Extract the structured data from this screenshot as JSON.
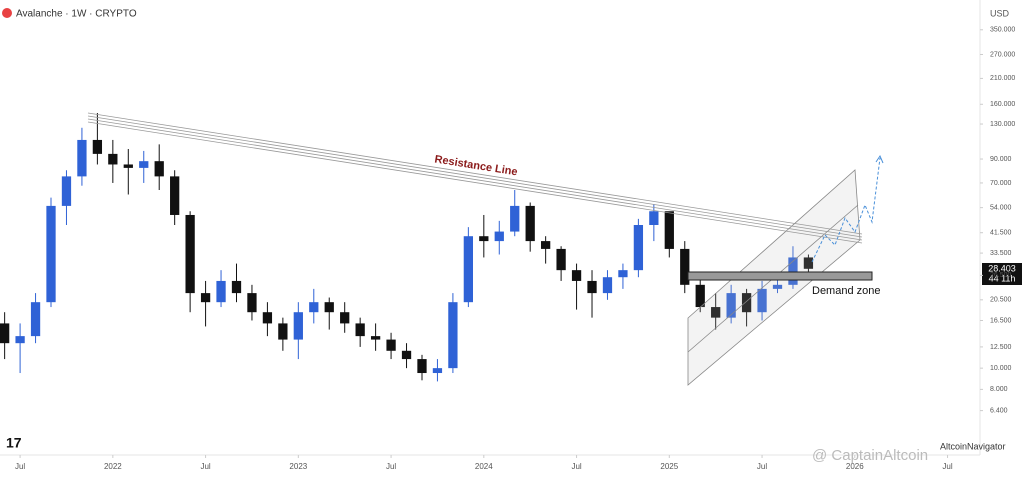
{
  "chart_data": {
    "type": "candlestick",
    "title": "Avalanche · 1W · CRYPTO",
    "currency": "USD",
    "annotations": [
      "Resistance Line",
      "Demand zone"
    ],
    "last_price_label": "28.403",
    "countdown": "44 11h",
    "author": "AltcoinNavigator",
    "watermark": "@ CaptainAltcoin",
    "log_scale": true,
    "up_color": "#2f62d6",
    "down_color": "#111111",
    "xlim": [
      -1.3,
      62.1
    ],
    "xticks": [
      {
        "value": 0,
        "label": "Jul"
      },
      {
        "value": 6,
        "label": "2022"
      },
      {
        "value": 12,
        "label": "Jul"
      },
      {
        "value": 18,
        "label": "2023"
      },
      {
        "value": 24,
        "label": "Jul"
      },
      {
        "value": 30,
        "label": "2024"
      },
      {
        "value": 36,
        "label": "Jul"
      },
      {
        "value": 42,
        "label": "2025"
      },
      {
        "value": 48,
        "label": "Jul"
      },
      {
        "value": 54,
        "label": "2026"
      },
      {
        "value": 60,
        "label": "Jul"
      }
    ],
    "ylim": [
      4.7,
      440
    ],
    "yticks": [
      {
        "value": 350,
        "label": "350.000"
      },
      {
        "value": 270,
        "label": "270.000"
      },
      {
        "value": 210,
        "label": "210.000"
      },
      {
        "value": 160,
        "label": "160.000"
      },
      {
        "value": 130,
        "label": "130.000"
      },
      {
        "value": 90,
        "label": "90.000"
      },
      {
        "value": 70,
        "label": "70.000"
      },
      {
        "value": 54,
        "label": "54.000"
      },
      {
        "value": 41.5,
        "label": "41.500"
      },
      {
        "value": 33.5,
        "label": "33.500"
      },
      {
        "value": 26.5,
        "label": "26.500"
      },
      {
        "value": 20.5,
        "label": "20.500"
      },
      {
        "value": 16.5,
        "label": "16.500"
      },
      {
        "value": 12.5,
        "label": "12.500"
      },
      {
        "value": 10,
        "label": "10.000"
      },
      {
        "value": 8,
        "label": "8.000"
      },
      {
        "value": 6.4,
        "label": "6.400"
      }
    ],
    "x": [
      -1,
      0,
      1,
      2,
      3,
      4,
      5,
      6,
      7,
      8,
      9,
      10,
      11,
      12,
      13,
      14,
      15,
      16,
      17,
      18,
      19,
      20,
      21,
      22,
      23,
      24,
      25,
      26,
      27,
      28,
      29,
      30,
      31,
      32,
      33,
      34,
      35,
      36,
      37,
      38,
      39,
      40,
      41,
      42,
      43,
      44,
      45,
      46,
      47,
      48,
      49,
      50,
      51
    ],
    "open": [
      16,
      13,
      14,
      20,
      55,
      75,
      110,
      95,
      85,
      82,
      88,
      75,
      50,
      22,
      20,
      25,
      22,
      18,
      16,
      13.5,
      18,
      20,
      18,
      16,
      14,
      13.5,
      12,
      11,
      9.5,
      10,
      20,
      40,
      38,
      42,
      55,
      38,
      35,
      28,
      25,
      22,
      26,
      28,
      45,
      52,
      35,
      24,
      19,
      17,
      22,
      18,
      23,
      24,
      32
    ],
    "high": [
      18,
      16,
      22,
      60,
      80,
      125,
      146,
      110,
      100,
      98,
      105,
      80,
      52,
      25,
      28,
      30,
      24,
      20,
      17,
      20,
      23,
      21,
      20,
      17,
      16,
      14.5,
      13,
      11.5,
      11,
      22,
      44,
      50,
      47,
      65,
      57,
      40,
      36,
      30,
      28,
      28,
      30,
      48,
      56,
      48,
      38,
      27,
      22,
      24,
      23,
      25,
      27,
      36,
      33
    ],
    "low": [
      11,
      9.5,
      13,
      19,
      45,
      68,
      85,
      70,
      62,
      70,
      65,
      45,
      18,
      15.5,
      19,
      20,
      16.5,
      14,
      12,
      11,
      16,
      15,
      14.5,
      12.5,
      12,
      11,
      10,
      8.8,
      8.7,
      9.5,
      19,
      32,
      33,
      40,
      34,
      30,
      25,
      18.5,
      17,
      20.5,
      23,
      26,
      38,
      32,
      22,
      18,
      15,
      16,
      15.5,
      16.5,
      22,
      23,
      27
    ],
    "close": [
      13,
      14,
      20,
      55,
      75,
      110,
      95,
      85,
      82,
      88,
      75,
      50,
      22,
      20,
      25,
      22,
      18,
      16,
      13.5,
      18,
      20,
      18,
      16,
      14,
      13.5,
      12,
      11,
      9.5,
      10,
      20,
      40,
      38,
      42,
      55,
      38,
      35,
      28,
      25,
      22,
      26,
      28,
      45,
      52,
      35,
      24,
      19,
      17,
      22,
      18,
      23,
      24,
      32,
      28.4
    ]
  }
}
